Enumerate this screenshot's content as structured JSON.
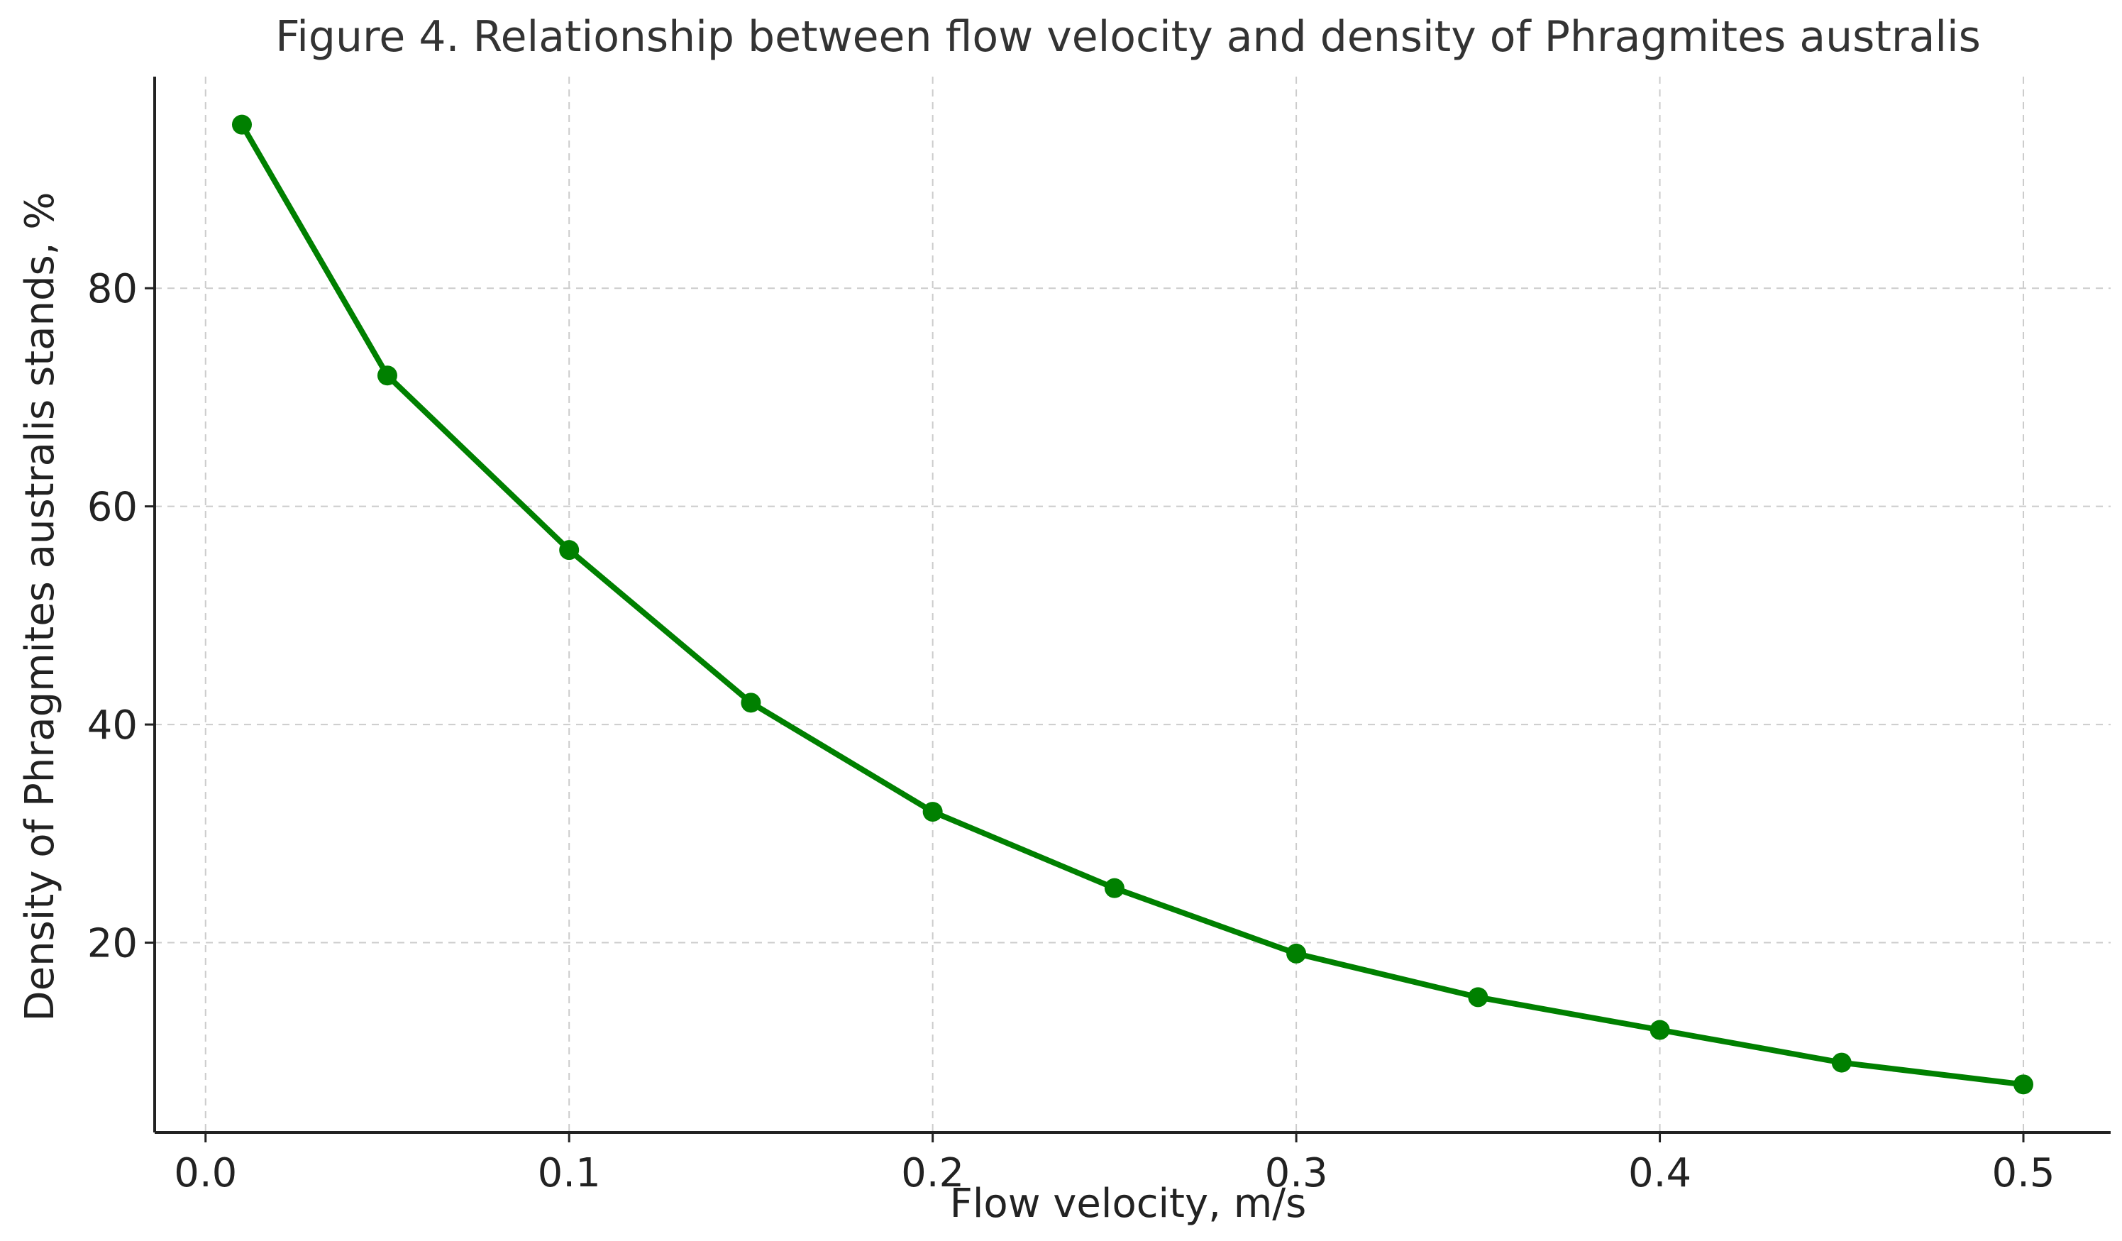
{
  "chart_data": {
    "type": "line",
    "title": "Figure 4. Relationship between flow velocity and density of Phragmites australis",
    "xlabel": "Flow velocity, m/s",
    "ylabel": "Density of Phragmites australis stands, %",
    "x": [
      0.01,
      0.05,
      0.1,
      0.15,
      0.2,
      0.25,
      0.3,
      0.35,
      0.4,
      0.45,
      0.5
    ],
    "series": [
      {
        "name": "Density of Phragmites australis stands",
        "values": [
          95,
          72,
          56,
          42,
          32,
          25,
          19,
          15,
          12,
          9,
          7
        ],
        "color": "#008000"
      }
    ],
    "xlim": [
      -0.014,
      0.524
    ],
    "ylim": [
      2.6,
      99.4
    ],
    "xticks": [
      0.0,
      0.1,
      0.2,
      0.3,
      0.4,
      0.5
    ],
    "xtick_labels": [
      "0.0",
      "0.1",
      "0.2",
      "0.3",
      "0.4",
      "0.5"
    ],
    "yticks": [
      20,
      40,
      60,
      80
    ],
    "ytick_labels": [
      "20",
      "40",
      "60",
      "80"
    ],
    "grid": true
  }
}
